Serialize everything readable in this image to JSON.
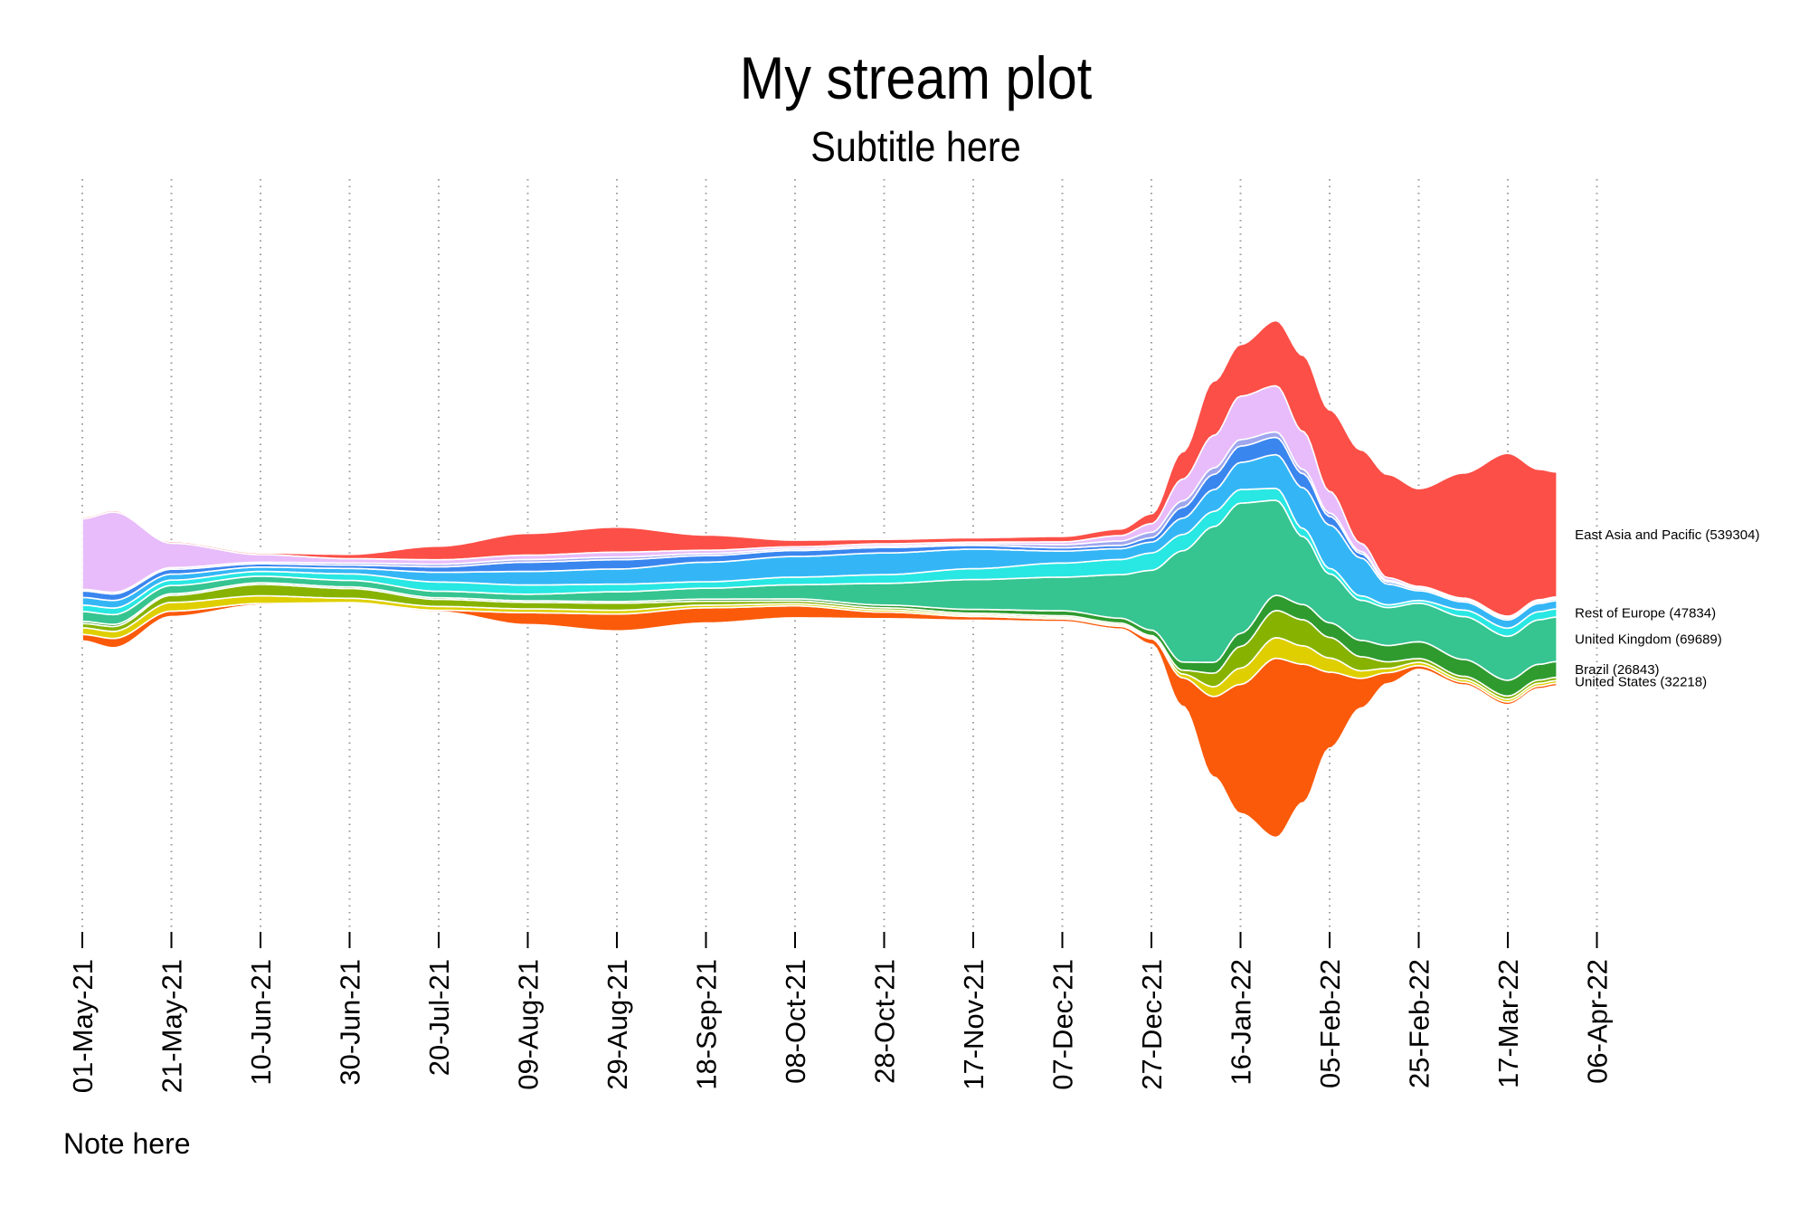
{
  "chart_data": {
    "type": "area",
    "subtype": "streamgraph",
    "title": "My stream plot",
    "subtitle": "Subtitle here",
    "note": "Note here",
    "xlabel": "",
    "ylabel": "",
    "grid": "vertical dotted",
    "x_ticks": [
      "01-May-21",
      "21-May-21",
      "10-Jun-21",
      "30-Jun-21",
      "20-Jul-21",
      "09-Aug-21",
      "29-Aug-21",
      "18-Sep-21",
      "08-Oct-21",
      "28-Oct-21",
      "17-Nov-21",
      "07-Dec-21",
      "27-Dec-21",
      "16-Jan-22",
      "05-Feb-22",
      "25-Feb-22",
      "17-Mar-22",
      "06-Apr-22"
    ],
    "x": [
      "2021-05-01",
      "2021-05-08",
      "2021-05-21",
      "2021-06-10",
      "2021-06-30",
      "2021-07-20",
      "2021-08-09",
      "2021-08-29",
      "2021-09-18",
      "2021-10-08",
      "2021-10-28",
      "2021-11-17",
      "2021-12-07",
      "2021-12-20",
      "2021-12-27",
      "2022-01-03",
      "2022-01-10",
      "2022-01-16",
      "2022-01-24",
      "2022-01-30",
      "2022-02-05",
      "2022-02-12",
      "2022-02-18",
      "2022-02-25",
      "2022-03-07",
      "2022-03-17",
      "2022-03-24",
      "2022-03-28"
    ],
    "series": [
      {
        "color": "#fa5a0a",
        "values": [
          12,
          17,
          10,
          3,
          2,
          3,
          22,
          31,
          28,
          22,
          12,
          7,
          5,
          5,
          10,
          52,
          148,
          238,
          330,
          255,
          140,
          55,
          20,
          7,
          5,
          5,
          5,
          5
        ]
      },
      {
        "color": "#dfcf00",
        "values": [
          12,
          13,
          16,
          14,
          8,
          7,
          7,
          7,
          5,
          4,
          4,
          3,
          3,
          3,
          3,
          7,
          18,
          30,
          38,
          34,
          26,
          14,
          8,
          6,
          5,
          5,
          5,
          5
        ]
      },
      {
        "color": "#87b300",
        "values": [
          8,
          9,
          13,
          21,
          18,
          13,
          12,
          13,
          7,
          5,
          4,
          3,
          3,
          3,
          3,
          7,
          25,
          40,
          50,
          48,
          38,
          26,
          12,
          7,
          6,
          6,
          6,
          6
        ]
      },
      {
        "color": "#2f9b2f",
        "values": [
          4,
          4,
          3,
          3,
          3,
          3,
          3,
          3,
          4,
          4,
          5,
          7,
          9,
          9,
          10,
          15,
          20,
          24,
          28,
          28,
          27,
          30,
          30,
          31,
          31,
          29,
          29,
          29
        ]
      },
      {
        "color": "#36c490",
        "values": [
          18,
          18,
          15,
          12,
          12,
          12,
          12,
          18,
          20,
          26,
          40,
          55,
          62,
          80,
          110,
          205,
          250,
          240,
          175,
          125,
          90,
          74,
          70,
          71,
          79,
          81,
          82,
          82
        ]
      },
      {
        "color": "#29e7e2",
        "values": [
          12,
          12,
          10,
          9,
          12,
          17,
          17,
          14,
          12,
          14,
          16,
          20,
          26,
          28,
          32,
          30,
          28,
          25,
          22,
          15,
          10,
          8,
          5,
          5,
          12,
          15,
          15,
          15
        ]
      },
      {
        "color": "#34b6f6",
        "values": [
          14,
          14,
          11,
          8,
          10,
          18,
          25,
          28,
          36,
          38,
          40,
          36,
          22,
          20,
          20,
          30,
          40,
          50,
          62,
          75,
          80,
          70,
          38,
          18,
          15,
          15,
          15,
          15
        ]
      },
      {
        "color": "#3a86ef",
        "values": [
          12,
          12,
          9,
          6,
          6,
          10,
          17,
          17,
          12,
          11,
          10,
          7,
          6,
          6,
          8,
          20,
          28,
          30,
          32,
          26,
          16,
          8,
          4,
          3,
          3,
          3,
          3,
          3
        ]
      },
      {
        "color": "#9ea6ee",
        "values": [
          3,
          3,
          3,
          3,
          4,
          5,
          5,
          5,
          4,
          3,
          3,
          3,
          6,
          8,
          10,
          12,
          12,
          12,
          10,
          8,
          6,
          4,
          3,
          2,
          2,
          2,
          2,
          2
        ]
      },
      {
        "color": "#e8bcfa",
        "values": [
          130,
          148,
          45,
          14,
          8,
          8,
          8,
          9,
          6,
          4,
          4,
          3,
          5,
          10,
          16,
          40,
          60,
          80,
          85,
          70,
          40,
          15,
          5,
          3,
          2,
          2,
          2,
          2
        ]
      },
      {
        "color": "#fc4f47",
        "values": [
          3,
          3,
          3,
          3,
          8,
          25,
          40,
          46,
          28,
          12,
          8,
          8,
          10,
          12,
          18,
          50,
          100,
          95,
          120,
          140,
          150,
          172,
          190,
          180,
          230,
          300,
          240,
          230
        ]
      }
    ],
    "end_labels": [
      {
        "name": "East Asia and Pacific (539304)",
        "series": 10
      },
      {
        "name": "Rest of Europe (47834)",
        "series": 5
      },
      {
        "name": "United Kingdom (69689)",
        "series": 4
      },
      {
        "name": "Brazil (26843)",
        "series": 3
      },
      {
        "name": "United States (32218)",
        "series": 1
      }
    ]
  }
}
